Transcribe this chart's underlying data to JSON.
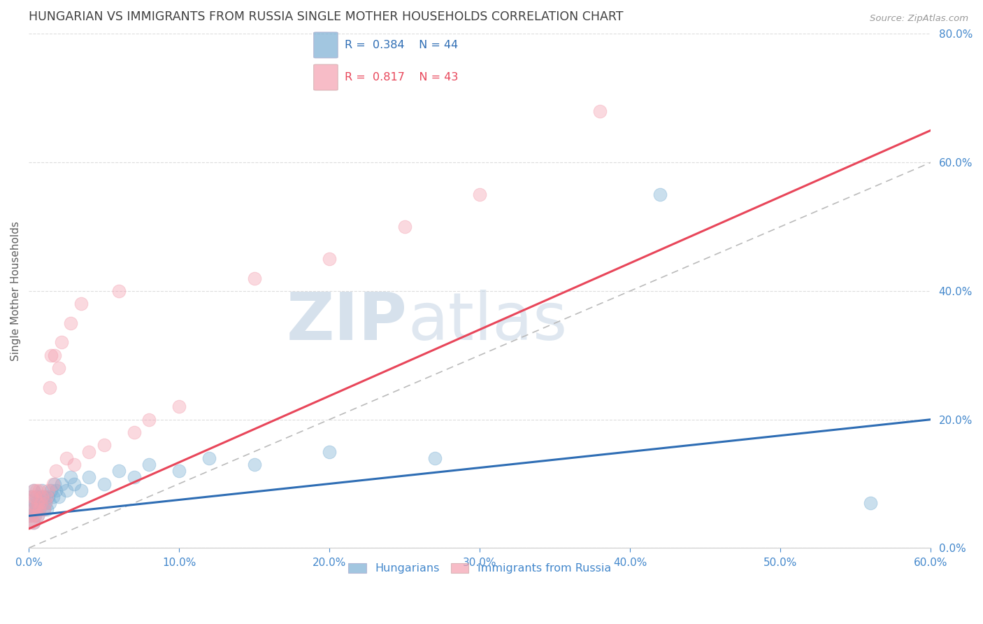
{
  "title": "HUNGARIAN VS IMMIGRANTS FROM RUSSIA SINGLE MOTHER HOUSEHOLDS CORRELATION CHART",
  "source": "Source: ZipAtlas.com",
  "ylabel": "Single Mother Households",
  "xlim": [
    0.0,
    0.6
  ],
  "ylim": [
    0.0,
    0.8
  ],
  "xticks": [
    0.0,
    0.1,
    0.2,
    0.3,
    0.4,
    0.5,
    0.6
  ],
  "yticks": [
    0.0,
    0.2,
    0.4,
    0.6,
    0.8
  ],
  "xtick_labels": [
    "0.0%",
    "10.0%",
    "20.0%",
    "30.0%",
    "40.0%",
    "50.0%",
    "60.0%"
  ],
  "ytick_labels": [
    "0.0%",
    "20.0%",
    "40.0%",
    "60.0%",
    "80.0%"
  ],
  "blue_color": "#7BAFD4",
  "pink_color": "#F4A0B0",
  "line_blue": "#2E6DB4",
  "line_pink": "#E8465A",
  "grid_color": "#DDDDDD",
  "title_color": "#404040",
  "axis_label_color": "#606060",
  "tick_color": "#4488CC",
  "watermark_color": "#C8D8E8",
  "hung_R": 0.384,
  "hung_N": 44,
  "russ_R": 0.817,
  "russ_N": 43,
  "hungarian_x": [
    0.001,
    0.002,
    0.002,
    0.003,
    0.003,
    0.003,
    0.004,
    0.004,
    0.005,
    0.005,
    0.006,
    0.006,
    0.007,
    0.008,
    0.008,
    0.009,
    0.01,
    0.01,
    0.011,
    0.012,
    0.013,
    0.014,
    0.015,
    0.016,
    0.017,
    0.018,
    0.02,
    0.022,
    0.025,
    0.028,
    0.03,
    0.035,
    0.04,
    0.05,
    0.06,
    0.07,
    0.08,
    0.1,
    0.12,
    0.15,
    0.2,
    0.27,
    0.42,
    0.56
  ],
  "hungarian_y": [
    0.05,
    0.06,
    0.08,
    0.04,
    0.06,
    0.09,
    0.05,
    0.07,
    0.06,
    0.08,
    0.05,
    0.07,
    0.06,
    0.08,
    0.07,
    0.09,
    0.06,
    0.08,
    0.07,
    0.06,
    0.08,
    0.07,
    0.09,
    0.08,
    0.1,
    0.09,
    0.08,
    0.1,
    0.09,
    0.11,
    0.1,
    0.09,
    0.11,
    0.1,
    0.12,
    0.11,
    0.13,
    0.12,
    0.14,
    0.13,
    0.15,
    0.14,
    0.55,
    0.07
  ],
  "russia_x": [
    0.001,
    0.001,
    0.002,
    0.002,
    0.003,
    0.003,
    0.003,
    0.004,
    0.004,
    0.005,
    0.005,
    0.006,
    0.006,
    0.007,
    0.007,
    0.008,
    0.009,
    0.01,
    0.011,
    0.012,
    0.013,
    0.014,
    0.015,
    0.016,
    0.017,
    0.018,
    0.02,
    0.022,
    0.025,
    0.028,
    0.03,
    0.035,
    0.04,
    0.05,
    0.06,
    0.07,
    0.08,
    0.1,
    0.15,
    0.2,
    0.25,
    0.3,
    0.38
  ],
  "russia_y": [
    0.04,
    0.07,
    0.05,
    0.08,
    0.04,
    0.06,
    0.09,
    0.05,
    0.08,
    0.06,
    0.09,
    0.05,
    0.07,
    0.06,
    0.09,
    0.07,
    0.08,
    0.06,
    0.07,
    0.08,
    0.09,
    0.25,
    0.3,
    0.1,
    0.3,
    0.12,
    0.28,
    0.32,
    0.14,
    0.35,
    0.13,
    0.38,
    0.15,
    0.16,
    0.4,
    0.18,
    0.2,
    0.22,
    0.42,
    0.45,
    0.5,
    0.55,
    0.68
  ]
}
